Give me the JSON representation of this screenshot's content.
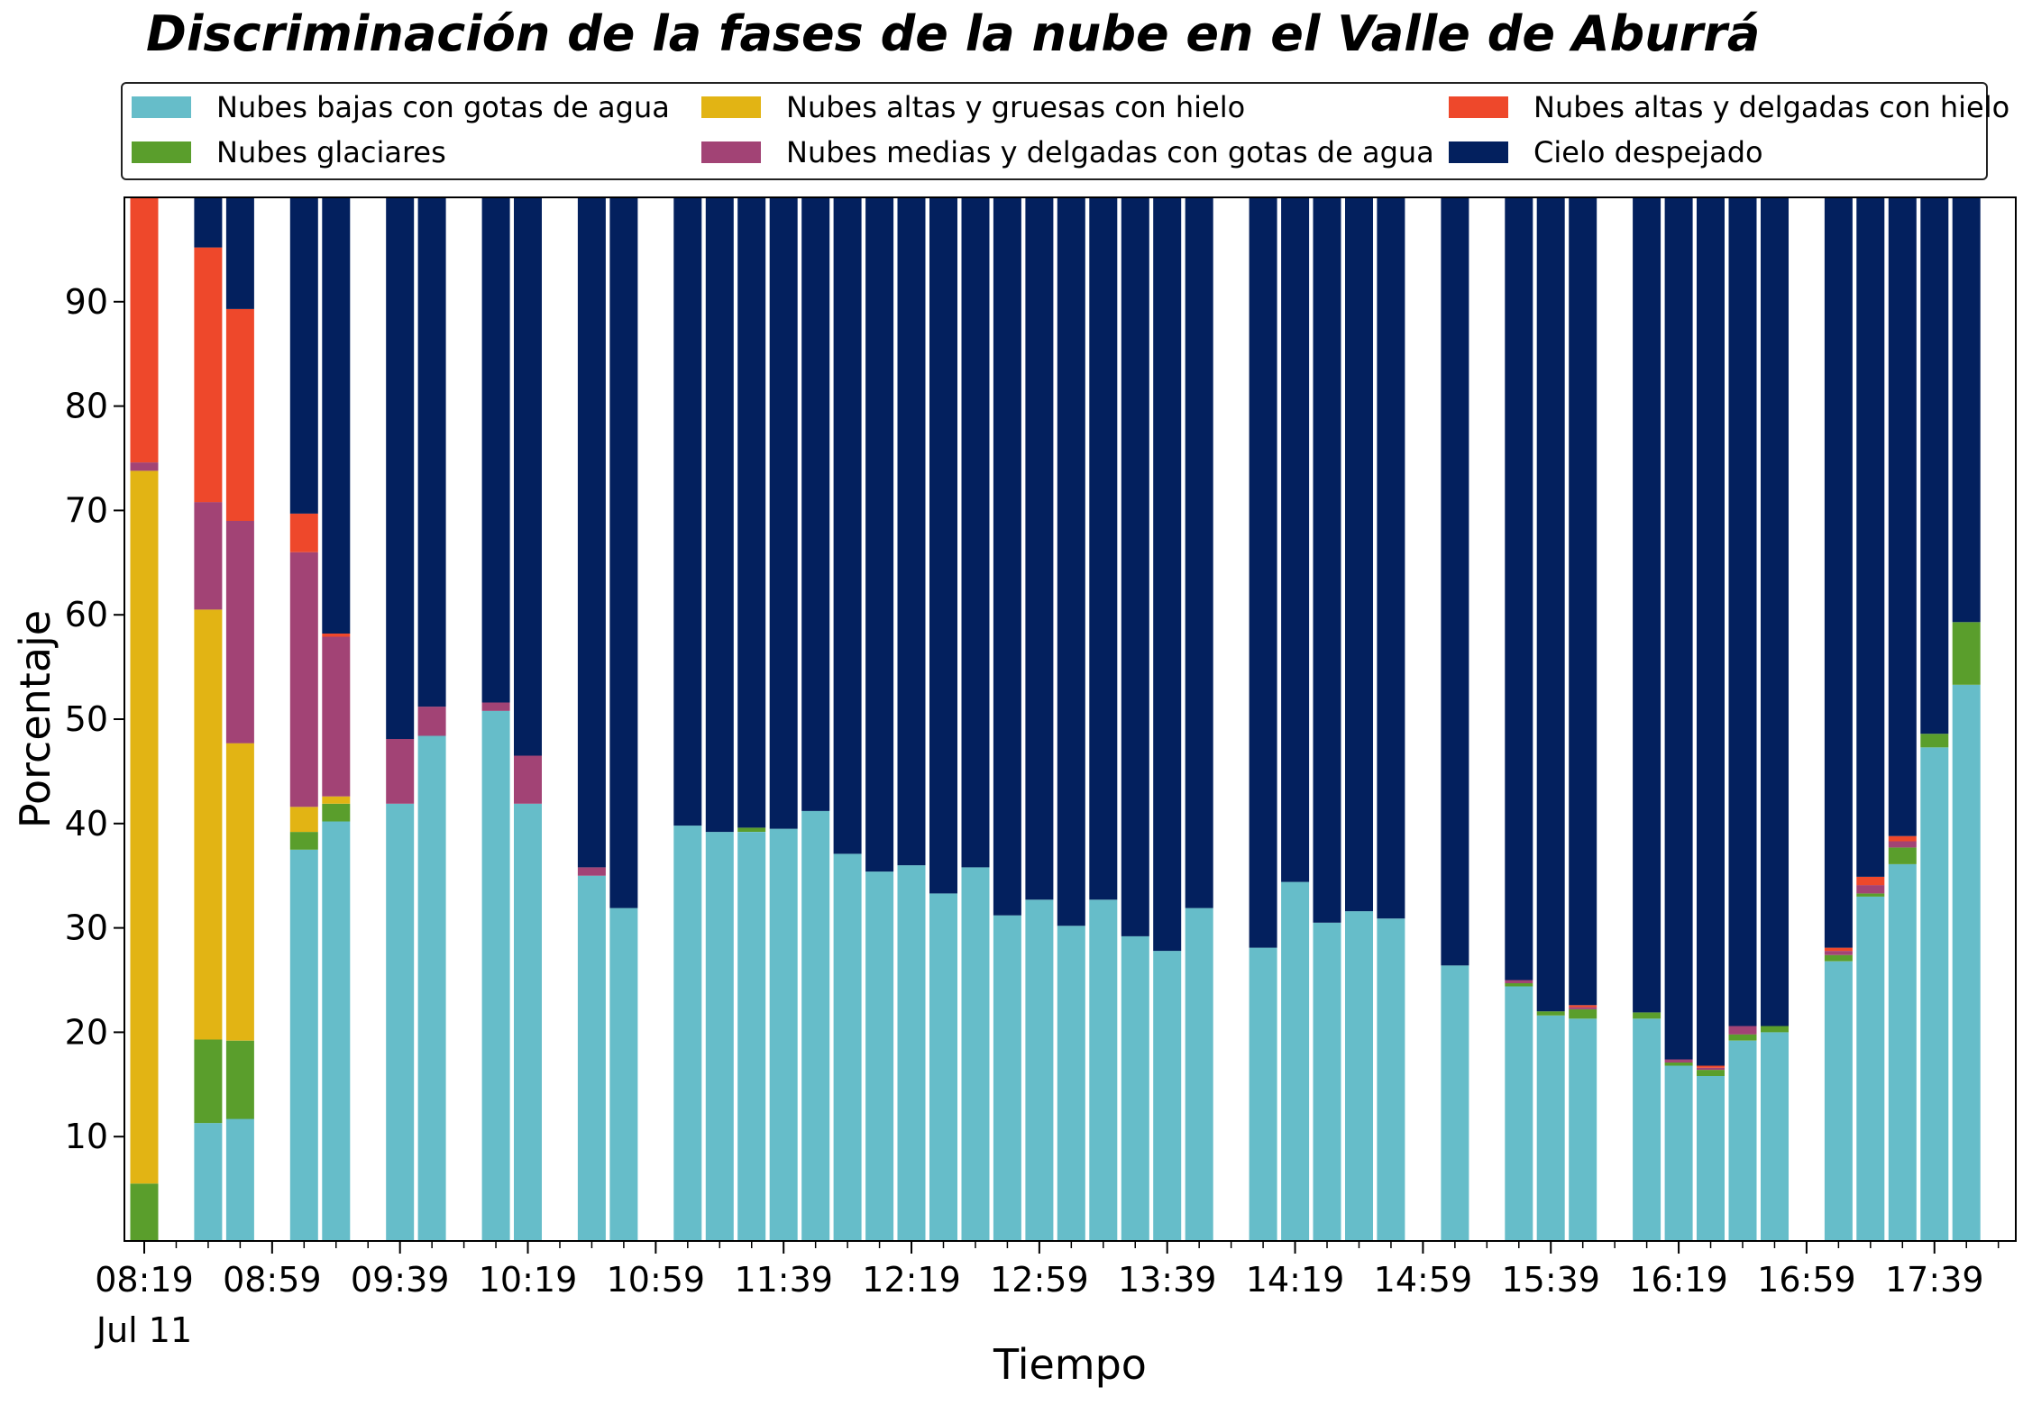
{
  "chart_data": {
    "type": "bar",
    "stacked": true,
    "title": "Discriminación de la fases de la nube en el Valle de Aburrá",
    "xlabel": "Tiempo",
    "ylabel": "Porcentaje",
    "ylim": [
      0,
      100
    ],
    "yticks": [
      10,
      20,
      30,
      40,
      50,
      60,
      70,
      80,
      90
    ],
    "xlim": [
      0,
      59
    ],
    "xticks": [
      {
        "pos": 0,
        "label": "08:19",
        "sublabel": "Jul 11"
      },
      {
        "pos": 4,
        "label": "08:59"
      },
      {
        "pos": 8,
        "label": "09:39"
      },
      {
        "pos": 12,
        "label": "10:19"
      },
      {
        "pos": 16,
        "label": "10:59"
      },
      {
        "pos": 20,
        "label": "11:39"
      },
      {
        "pos": 24,
        "label": "12:19"
      },
      {
        "pos": 28,
        "label": "12:59"
      },
      {
        "pos": 32,
        "label": "13:39"
      },
      {
        "pos": 36,
        "label": "14:19"
      },
      {
        "pos": 40,
        "label": "14:59"
      },
      {
        "pos": 44,
        "label": "15:39"
      },
      {
        "pos": 48,
        "label": "16:19"
      },
      {
        "pos": 52,
        "label": "16:59"
      },
      {
        "pos": 56,
        "label": "17:39"
      }
    ],
    "grid": false,
    "legend_position": "top",
    "series": [
      {
        "name": "Nubes bajas con gotas de agua",
        "color": "#66bdc9"
      },
      {
        "name": "Nubes glaciares",
        "color": "#5a9e2c"
      },
      {
        "name": "Nubes altas y gruesas con hielo",
        "color": "#e2b414"
      },
      {
        "name": "Nubes medias y delgadas con gotas de agua",
        "color": "#a24375"
      },
      {
        "name": "Nubes altas y delgadas con hielo",
        "color": "#ee482b"
      },
      {
        "name": "Cielo despejado",
        "color": "#03205e"
      }
    ],
    "bars": [
      {
        "x": 0,
        "values": [
          0,
          5.5,
          68.3,
          0.8,
          25.4,
          0
        ]
      },
      {
        "x": 2,
        "values": [
          11.3,
          8.0,
          41.2,
          10.3,
          24.4,
          4.8
        ]
      },
      {
        "x": 3,
        "values": [
          11.7,
          7.5,
          28.5,
          21.3,
          20.3,
          10.7
        ]
      },
      {
        "x": 5,
        "values": [
          37.5,
          1.7,
          2.4,
          24.4,
          3.7,
          30.3
        ]
      },
      {
        "x": 6,
        "values": [
          40.2,
          1.7,
          0.7,
          15.3,
          0.3,
          41.8
        ]
      },
      {
        "x": 8,
        "values": [
          41.9,
          0,
          0,
          6.2,
          0,
          51.9
        ]
      },
      {
        "x": 9,
        "values": [
          48.4,
          0,
          0,
          2.8,
          0,
          48.8
        ]
      },
      {
        "x": 11,
        "values": [
          50.8,
          0,
          0,
          0.8,
          0,
          48.4
        ]
      },
      {
        "x": 12,
        "values": [
          41.9,
          0,
          0,
          4.6,
          0,
          53.5
        ]
      },
      {
        "x": 14,
        "values": [
          35.0,
          0,
          0,
          0.8,
          0,
          64.2
        ]
      },
      {
        "x": 15,
        "values": [
          31.9,
          0,
          0,
          0,
          0,
          68.1
        ]
      },
      {
        "x": 17,
        "values": [
          39.8,
          0,
          0,
          0,
          0,
          60.2
        ]
      },
      {
        "x": 18,
        "values": [
          39.2,
          0,
          0,
          0,
          0,
          60.8
        ]
      },
      {
        "x": 19,
        "values": [
          39.2,
          0.4,
          0,
          0,
          0,
          60.4
        ]
      },
      {
        "x": 20,
        "values": [
          39.5,
          0,
          0,
          0,
          0,
          60.5
        ]
      },
      {
        "x": 21,
        "values": [
          41.2,
          0,
          0,
          0,
          0,
          58.8
        ]
      },
      {
        "x": 22,
        "values": [
          37.1,
          0,
          0,
          0,
          0,
          62.9
        ]
      },
      {
        "x": 23,
        "values": [
          35.4,
          0,
          0,
          0,
          0,
          64.6
        ]
      },
      {
        "x": 24,
        "values": [
          36.0,
          0,
          0,
          0,
          0,
          64.0
        ]
      },
      {
        "x": 25,
        "values": [
          33.3,
          0,
          0,
          0,
          0,
          66.7
        ]
      },
      {
        "x": 26,
        "values": [
          35.8,
          0,
          0,
          0,
          0,
          64.2
        ]
      },
      {
        "x": 27,
        "values": [
          31.2,
          0,
          0,
          0,
          0,
          68.8
        ]
      },
      {
        "x": 28,
        "values": [
          32.7,
          0,
          0,
          0,
          0,
          67.3
        ]
      },
      {
        "x": 29,
        "values": [
          30.2,
          0,
          0,
          0,
          0,
          69.8
        ]
      },
      {
        "x": 30,
        "values": [
          32.7,
          0,
          0,
          0,
          0,
          67.3
        ]
      },
      {
        "x": 31,
        "values": [
          29.2,
          0,
          0,
          0,
          0,
          70.8
        ]
      },
      {
        "x": 32,
        "values": [
          27.8,
          0,
          0,
          0,
          0,
          72.2
        ]
      },
      {
        "x": 33,
        "values": [
          31.9,
          0,
          0,
          0,
          0,
          68.1
        ]
      },
      {
        "x": 35,
        "values": [
          28.1,
          0,
          0,
          0,
          0,
          71.9
        ]
      },
      {
        "x": 36,
        "values": [
          34.4,
          0,
          0,
          0,
          0,
          65.6
        ]
      },
      {
        "x": 37,
        "values": [
          30.5,
          0,
          0,
          0,
          0,
          69.5
        ]
      },
      {
        "x": 38,
        "values": [
          31.6,
          0,
          0,
          0,
          0,
          68.4
        ]
      },
      {
        "x": 39,
        "values": [
          30.9,
          0,
          0,
          0,
          0,
          69.1
        ]
      },
      {
        "x": 41,
        "values": [
          26.4,
          0,
          0,
          0,
          0,
          73.6
        ]
      },
      {
        "x": 43,
        "values": [
          24.4,
          0.3,
          0,
          0.3,
          0,
          75.0
        ]
      },
      {
        "x": 44,
        "values": [
          21.6,
          0.4,
          0,
          0,
          0,
          78.0
        ]
      },
      {
        "x": 45,
        "values": [
          21.3,
          0.9,
          0,
          0.2,
          0.2,
          77.4
        ]
      },
      {
        "x": 47,
        "values": [
          21.3,
          0.6,
          0,
          0,
          0,
          78.1
        ]
      },
      {
        "x": 48,
        "values": [
          16.8,
          0.3,
          0,
          0.3,
          0,
          82.6
        ]
      },
      {
        "x": 49,
        "values": [
          15.8,
          0.6,
          0,
          0.2,
          0.2,
          83.2
        ]
      },
      {
        "x": 50,
        "values": [
          19.2,
          0.6,
          0,
          0.8,
          0,
          79.4
        ]
      },
      {
        "x": 51,
        "values": [
          20.0,
          0.6,
          0,
          0,
          0,
          79.4
        ]
      },
      {
        "x": 53,
        "values": [
          26.8,
          0.6,
          0,
          0.4,
          0.3,
          71.9
        ]
      },
      {
        "x": 54,
        "values": [
          33.0,
          0.3,
          0,
          0.8,
          0.8,
          65.1
        ]
      },
      {
        "x": 55,
        "values": [
          36.1,
          1.6,
          0,
          0.6,
          0.5,
          61.2
        ]
      },
      {
        "x": 56,
        "values": [
          47.3,
          1.3,
          0,
          0,
          0,
          51.4
        ]
      },
      {
        "x": 57,
        "values": [
          53.3,
          6.0,
          0,
          0,
          0,
          40.7
        ]
      }
    ]
  }
}
